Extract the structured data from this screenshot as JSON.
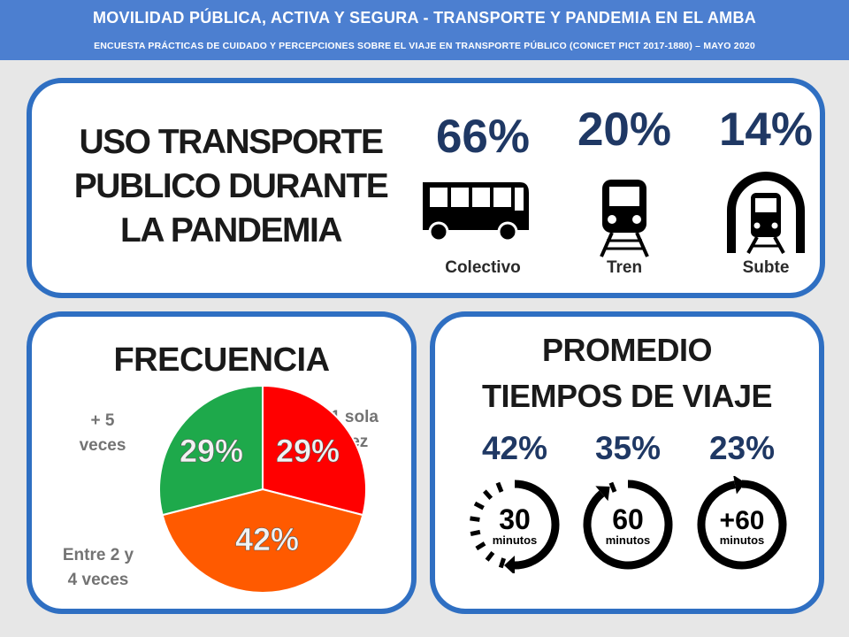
{
  "header": {
    "title": "MOVILIDAD PÚBLICA, ACTIVA Y SEGURA - TRANSPORTE Y PANDEMIA EN EL AMBA",
    "subtitle": "ENCUESTA PRÁCTICAS DE CUIDADO Y PERCEPCIONES SOBRE EL VIAJE EN TRANSPORTE PÚBLICO (CONICET PICT 2017-1880) – MAYO 2020"
  },
  "uso": {
    "title_lines": [
      "USO TRANSPORTE",
      "PUBLICO DURANTE",
      "LA PANDEMIA"
    ],
    "modes": [
      {
        "pct": "66%",
        "label": "Colectivo",
        "icon": "bus-icon"
      },
      {
        "pct": "20%",
        "label": "Tren",
        "icon": "train-icon"
      },
      {
        "pct": "14%",
        "label": "Subte",
        "icon": "subway-icon"
      }
    ]
  },
  "frecuencia": {
    "title": "FRECUENCIA",
    "slices": [
      {
        "label_lines": [
          "1 sola",
          "vez"
        ],
        "value": 29,
        "text": "29%",
        "color": "#ff0000"
      },
      {
        "label_lines": [
          "Entre 2 y",
          "4 veces"
        ],
        "value": 42,
        "text": "42%",
        "color": "#ff5a00"
      },
      {
        "label_lines": [
          "+ 5",
          "veces"
        ],
        "value": 29,
        "text": "29%",
        "color": "#1ea94b"
      }
    ]
  },
  "tiempos": {
    "title_lines": [
      "PROMEDIO",
      "TIEMPOS DE VIAJE"
    ],
    "items": [
      {
        "pct": "42%",
        "minutes": "30",
        "unit": "minutos",
        "icon": "clock-30-icon"
      },
      {
        "pct": "35%",
        "minutes": "60",
        "unit": "minutos",
        "icon": "clock-60-icon"
      },
      {
        "pct": "23%",
        "minutes": "+60",
        "unit": "minutos",
        "icon": "clock-plus60-icon"
      }
    ]
  },
  "colors": {
    "header": "#4c7fd0",
    "panel_border": "#2f6fc2",
    "pct_text": "#1f3864"
  }
}
